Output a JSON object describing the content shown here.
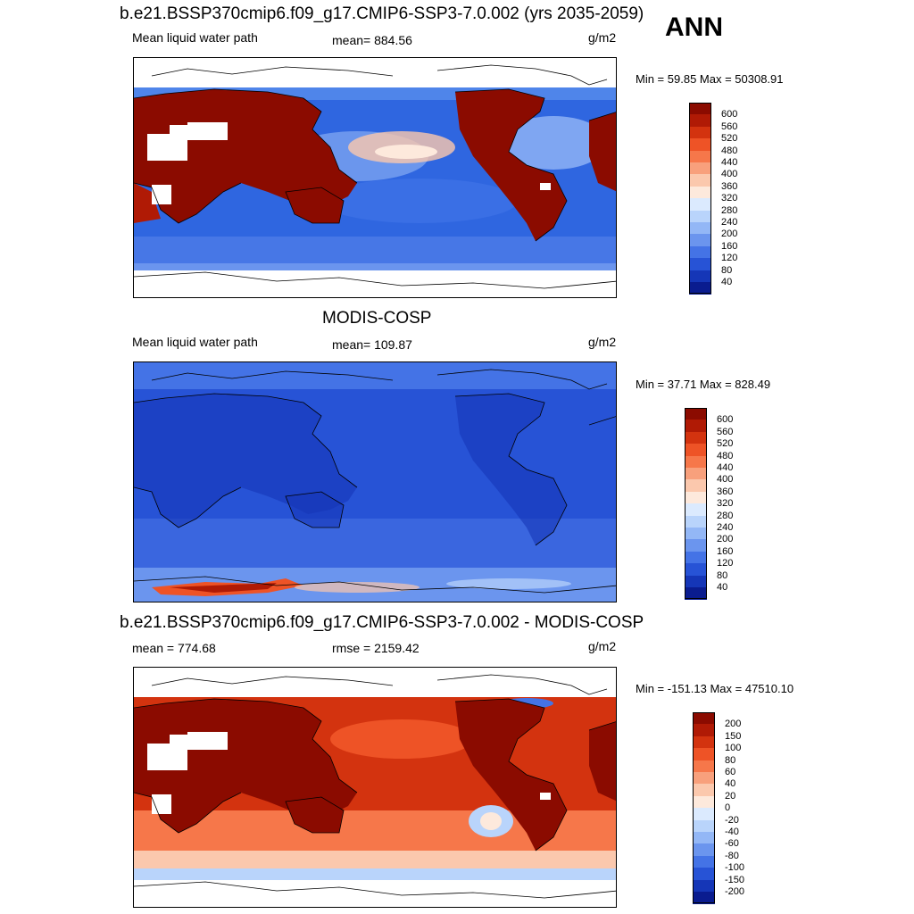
{
  "header": {
    "case_title": "b.e21.BSSP370cmip6.f09_g17.CMIP6-SSP3-7.0.002 (yrs 2035-2059)",
    "season": "ANN"
  },
  "panels": [
    {
      "field_label": "Mean liquid water path",
      "stat_text": "mean= 884.56",
      "units": "g/m2",
      "minmax_text": "Min =  59.85 Max = 50308.91",
      "kind": "model"
    },
    {
      "title": "MODIS-COSP",
      "field_label": "Mean liquid water path",
      "stat_text": "mean= 109.87",
      "units": "g/m2",
      "minmax_text": "Min =  37.71 Max = 828.49",
      "kind": "obs"
    },
    {
      "title": "b.e21.BSSP370cmip6.f09_g17.CMIP6-SSP3-7.0.002 - MODIS-COSP",
      "field_label": "mean = 774.68",
      "stat_text": "rmse = 2159.42",
      "units": "g/m2",
      "minmax_text": "Min = -151.13 Max = 47510.10",
      "kind": "diff"
    }
  ],
  "colorbars": {
    "abs": {
      "labels": [
        "600",
        "560",
        "520",
        "480",
        "440",
        "400",
        "360",
        "320",
        "280",
        "240",
        "200",
        "160",
        "120",
        "80",
        "40"
      ],
      "colors": [
        "#8b0b00",
        "#b01a05",
        "#d3330f",
        "#ee5326",
        "#f6774a",
        "#f8a07c",
        "#fbc8ad",
        "#fde9dc",
        "#dbeafe",
        "#b9d4fb",
        "#93b7f6",
        "#6b95ee",
        "#4473e6",
        "#2753d6",
        "#1536b7",
        "#0a1c8f"
      ]
    },
    "diff": {
      "labels": [
        "200",
        "150",
        "100",
        "80",
        "60",
        "40",
        "20",
        "0",
        "-20",
        "-40",
        "-60",
        "-80",
        "-100",
        "-150",
        "-200"
      ],
      "colors": [
        "#8b0b00",
        "#b01a05",
        "#d3330f",
        "#ee5326",
        "#f6774a",
        "#f8a07c",
        "#fbc8ad",
        "#fde9dc",
        "#dbeafe",
        "#b9d4fb",
        "#93b7f6",
        "#6b95ee",
        "#4473e6",
        "#2753d6",
        "#1536b7",
        "#0a1c8f"
      ]
    }
  }
}
